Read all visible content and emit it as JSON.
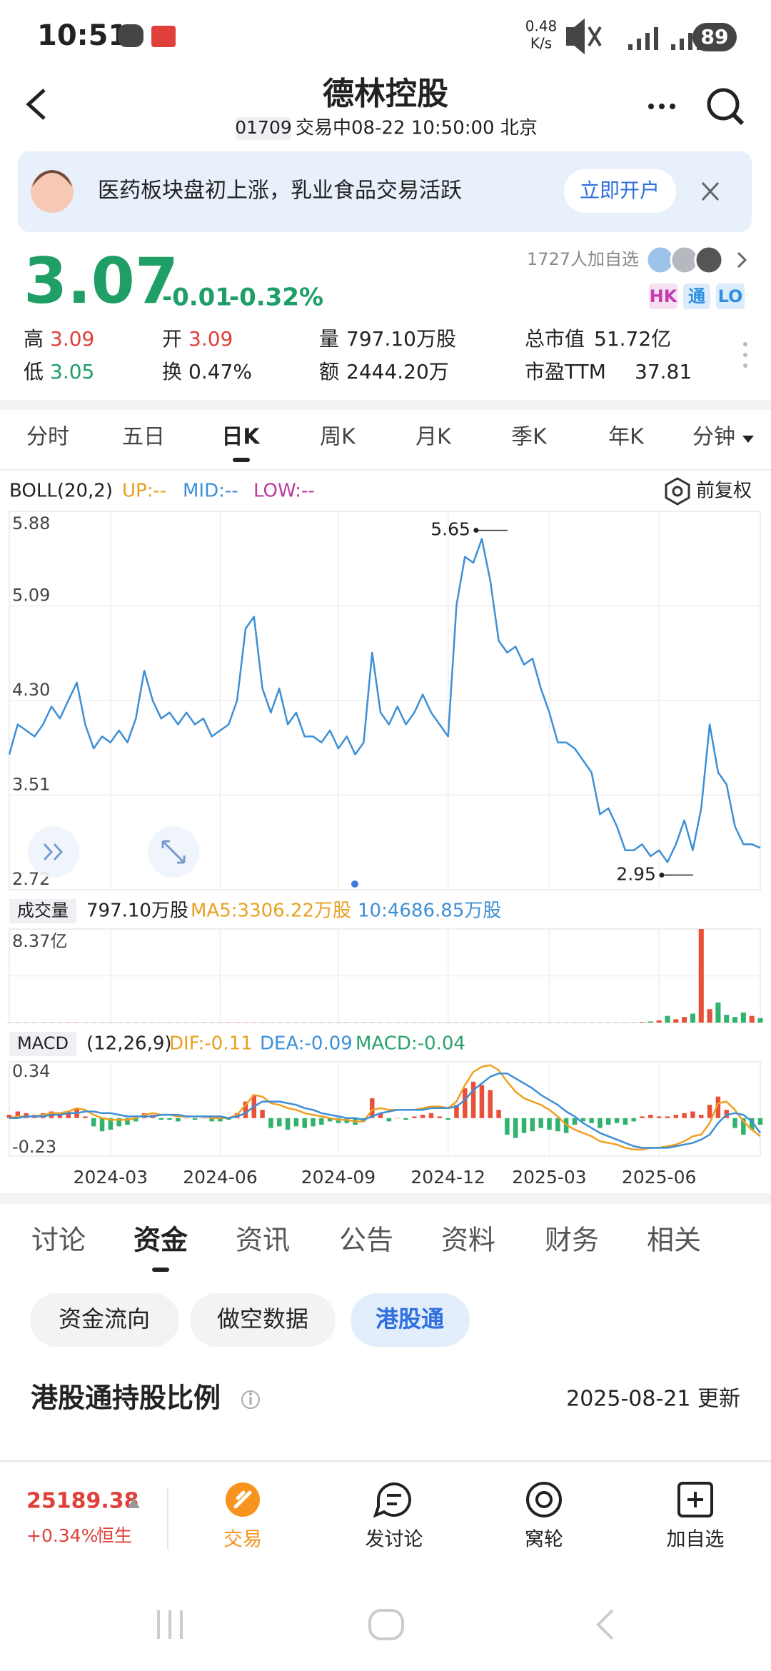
{
  "status_bar": {
    "time": "10:51",
    "net_speed": "0.48",
    "net_unit": "K/s",
    "battery": "89"
  },
  "header": {
    "title": "德林控股",
    "code": "01709",
    "status": "交易中08-22 10:50:00 北京"
  },
  "banner": {
    "text": "医药板块盘初上涨，乳业食品交易活跃",
    "button": "立即开户"
  },
  "quote": {
    "price": "3.07",
    "change": "-0.01",
    "change_pct": "-0.32%",
    "followers": "1727人加自选",
    "badges": [
      "HK",
      "通",
      "LO"
    ],
    "stats": [
      {
        "label": "高",
        "value": "3.09"
      },
      {
        "label": "开",
        "value": "3.09"
      },
      {
        "label": "量",
        "value": "797.10万股"
      },
      {
        "label": "总市值",
        "value": "51.72亿"
      },
      {
        "label": "低",
        "value": "3.05"
      },
      {
        "label": "换",
        "value": "0.47%"
      },
      {
        "label": "额",
        "value": "2444.20万"
      },
      {
        "label": "市盈TTM",
        "value": "37.81"
      }
    ]
  },
  "period_tabs": [
    "分时",
    "五日",
    "日K",
    "周K",
    "月K",
    "季K",
    "年K",
    "分钟"
  ],
  "chart_data": [
    {
      "type": "line",
      "legend": {
        "name": "BOLL(20,2)",
        "up": "UP:--",
        "mid": "MID:--",
        "low": "LOW:--"
      },
      "adjust": "前复权",
      "color": "#3d8fd6",
      "values": [
        3.85,
        4.1,
        4.05,
        4.0,
        4.1,
        4.25,
        4.15,
        4.3,
        4.45,
        4.1,
        3.9,
        4.0,
        3.95,
        4.05,
        3.95,
        4.15,
        4.55,
        4.3,
        4.15,
        4.2,
        4.1,
        4.2,
        4.1,
        4.15,
        4.0,
        4.05,
        4.1,
        4.3,
        4.9,
        5.0,
        4.4,
        4.2,
        4.4,
        4.1,
        4.2,
        4.0,
        4.0,
        3.95,
        4.05,
        3.9,
        4.0,
        3.85,
        3.95,
        4.7,
        4.2,
        4.1,
        4.25,
        4.1,
        4.2,
        4.35,
        4.2,
        4.1,
        4.0,
        5.1,
        5.5,
        5.45,
        5.65,
        5.3,
        4.8,
        4.7,
        4.75,
        4.6,
        4.65,
        4.4,
        4.2,
        3.95,
        3.95,
        3.9,
        3.8,
        3.7,
        3.35,
        3.4,
        3.25,
        3.05,
        3.05,
        3.1,
        3.0,
        3.05,
        2.95,
        3.1,
        3.3,
        3.05,
        3.4,
        4.1,
        3.7,
        3.6,
        3.25,
        3.1,
        3.1,
        3.07
      ],
      "ylim": [
        2.72,
        5.88
      ],
      "yticks": [
        5.88,
        5.09,
        {
          "value": 4.3,
          "label": "4.30"
        },
        3.51,
        2.72
      ],
      "xticks": [
        {
          "value": 12,
          "label": "2024-03"
        },
        {
          "value": 25,
          "label": "2024-06"
        },
        {
          "value": 39,
          "label": "2024-09"
        },
        {
          "value": 52,
          "label": "2024-12"
        },
        {
          "value": 64,
          "label": "2025-03"
        },
        {
          "value": 77,
          "label": "2025-06"
        }
      ],
      "annotations": [
        {
          "value": 5.65,
          "index": 56
        },
        {
          "value": 2.95,
          "index": 78
        }
      ]
    },
    {
      "type": "bar",
      "label": "成交量",
      "summary": "797.10万股",
      "ma5": "MA5:3306.22万股",
      "ma10": "10:4686.85万股",
      "ylim": [
        0,
        8.37
      ],
      "yticks": [
        {
          "value": 8.37,
          "label": "8.37亿"
        }
      ],
      "values": [
        0.02,
        0.02,
        0.02,
        0.02,
        0.02,
        0.02,
        0.02,
        0.02,
        0.02,
        0.02,
        0.02,
        0.02,
        0.02,
        0.02,
        0.02,
        0.02,
        0.02,
        0.02,
        0.02,
        0.02,
        0.02,
        0.02,
        0.02,
        0.02,
        0.02,
        0.02,
        0.02,
        0.02,
        0.02,
        0.02,
        0.02,
        0.02,
        0.02,
        0.02,
        0.02,
        0.02,
        0.02,
        0.02,
        0.02,
        0.02,
        0.02,
        0.02,
        0.02,
        0.02,
        0.02,
        0.02,
        0.02,
        0.02,
        0.02,
        0.02,
        0.02,
        0.02,
        0.02,
        0.02,
        0.02,
        0.02,
        0.02,
        0.02,
        0.02,
        0.02,
        0.02,
        0.02,
        0.02,
        0.02,
        0.02,
        0.02,
        0.02,
        0.02,
        0.02,
        0.02,
        0.02,
        0.02,
        0.02,
        0.02,
        0.02,
        0.05,
        0.1,
        0.2,
        0.6,
        0.3,
        0.5,
        0.8,
        8.37,
        1.2,
        1.8,
        0.7,
        0.5,
        0.9,
        0.6,
        0.4
      ]
    },
    {
      "type": "macd",
      "label": "MACD",
      "params": "(12,26,9)",
      "dif_label": "DIF:-0.11",
      "dea_label": "DEA:-0.09",
      "macd_label": "MACD:-0.04",
      "ylim": [
        -0.23,
        0.34
      ],
      "yticks": [
        0.34,
        -0.23
      ],
      "dif_color": "#f0a020",
      "dea_color": "#3d8fd6",
      "histogram": [
        0.02,
        0.04,
        0.03,
        0.02,
        0.03,
        0.04,
        0.02,
        0.04,
        0.06,
        0.01,
        -0.05,
        -0.08,
        -0.07,
        -0.05,
        -0.04,
        -0.02,
        0.03,
        0.02,
        -0.01,
        -0.01,
        -0.02,
        0,
        -0.01,
        0,
        -0.02,
        -0.02,
        -0.01,
        0.03,
        0.1,
        0.14,
        0.05,
        -0.06,
        -0.05,
        -0.07,
        -0.05,
        -0.06,
        -0.05,
        -0.04,
        -0.02,
        -0.03,
        -0.03,
        -0.04,
        -0.02,
        0.12,
        0.03,
        -0.02,
        0,
        -0.01,
        0.01,
        0.02,
        0.03,
        0.01,
        -0.01,
        0.08,
        0.18,
        0.22,
        0.2,
        0.17,
        0.05,
        -0.1,
        -0.12,
        -0.09,
        -0.08,
        -0.06,
        -0.07,
        -0.08,
        -0.09,
        -0.04,
        -0.02,
        -0.03,
        -0.06,
        -0.04,
        -0.03,
        -0.04,
        -0.02,
        0.01,
        0.02,
        0.01,
        0.01,
        0.02,
        0.03,
        0.04,
        0.02,
        0.08,
        0.13,
        0.05,
        -0.06,
        -0.1,
        -0.07,
        -0.04
      ],
      "dif": [
        0,
        0.01,
        0.01,
        0.01,
        0.02,
        0.03,
        0.03,
        0.04,
        0.06,
        0.05,
        0.02,
        0,
        -0.01,
        -0.01,
        -0.01,
        0,
        0.02,
        0.03,
        0.02,
        0.02,
        0.01,
        0.01,
        0.01,
        0.01,
        0,
        0,
        0,
        0.02,
        0.08,
        0.14,
        0.13,
        0.09,
        0.08,
        0.06,
        0.05,
        0.03,
        0.02,
        0.01,
        0,
        -0.01,
        -0.01,
        -0.02,
        -0.02,
        0.05,
        0.06,
        0.05,
        0.05,
        0.05,
        0.05,
        0.06,
        0.07,
        0.07,
        0.06,
        0.1,
        0.2,
        0.28,
        0.31,
        0.32,
        0.29,
        0.22,
        0.16,
        0.12,
        0.1,
        0.08,
        0.05,
        0.01,
        -0.04,
        -0.07,
        -0.09,
        -0.11,
        -0.14,
        -0.15,
        -0.16,
        -0.18,
        -0.19,
        -0.19,
        -0.18,
        -0.18,
        -0.17,
        -0.16,
        -0.14,
        -0.11,
        -0.1,
        -0.03,
        0.09,
        0.1,
        0.05,
        -0.02,
        -0.07,
        -0.11
      ],
      "dea": [
        0,
        0,
        0.01,
        0.01,
        0.01,
        0.02,
        0.02,
        0.03,
        0.03,
        0.04,
        0.04,
        0.03,
        0.03,
        0.02,
        0.01,
        0.01,
        0.01,
        0.01,
        0.02,
        0.02,
        0.02,
        0.01,
        0.01,
        0.01,
        0.01,
        0.01,
        0,
        0.01,
        0.03,
        0.07,
        0.1,
        0.1,
        0.1,
        0.09,
        0.08,
        0.06,
        0.05,
        0.03,
        0.02,
        0.01,
        0,
        0,
        -0.01,
        0.01,
        0.03,
        0.04,
        0.05,
        0.05,
        0.05,
        0.05,
        0.06,
        0.06,
        0.06,
        0.07,
        0.11,
        0.17,
        0.21,
        0.25,
        0.27,
        0.27,
        0.24,
        0.21,
        0.18,
        0.14,
        0.11,
        0.08,
        0.04,
        0.01,
        -0.03,
        -0.06,
        -0.09,
        -0.11,
        -0.13,
        -0.15,
        -0.17,
        -0.18,
        -0.18,
        -0.18,
        -0.18,
        -0.17,
        -0.16,
        -0.15,
        -0.13,
        -0.1,
        -0.03,
        0.02,
        0.03,
        0.02,
        -0.02,
        -0.09
      ]
    }
  ],
  "info_tabs": [
    "讨论",
    "资金",
    "资讯",
    "公告",
    "资料",
    "财务",
    "相关"
  ],
  "sub_tabs": [
    "资金流向",
    "做空数据",
    "港股通"
  ],
  "section": {
    "title": "港股通持股比例",
    "updated": "2025-08-21 更新"
  },
  "bottom_bar": {
    "index_value": "25189.38",
    "index_change": "+0.34%",
    "index_name": "恒生",
    "nav": [
      "交易",
      "发讨论",
      "窝轮",
      "加自选"
    ]
  }
}
